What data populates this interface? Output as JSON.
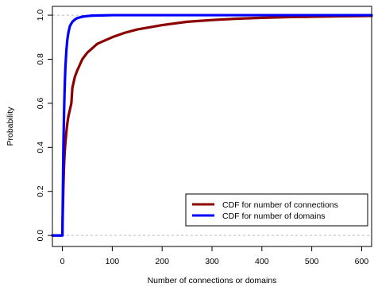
{
  "chart_data": {
    "type": "line",
    "title": "",
    "xlabel": "Number of connections or domains",
    "ylabel": "Probability",
    "xlim": [
      -20,
      620
    ],
    "ylim": [
      -0.05,
      1.04
    ],
    "x_ticks": [
      0,
      100,
      200,
      300,
      400,
      500,
      600
    ],
    "x_tick_labels": [
      "0",
      "100",
      "200",
      "300",
      "400",
      "500",
      "600"
    ],
    "y_ticks": [
      0.0,
      0.2,
      0.4,
      0.6,
      0.8,
      1.0
    ],
    "y_tick_labels": [
      "0.0",
      "0.2",
      "0.4",
      "0.6",
      "0.8",
      "1.0"
    ],
    "reference_lines_y": [
      0.0,
      1.0
    ],
    "grid": false,
    "legend_position": "bottom-right",
    "series": [
      {
        "name": "CDF for number of connections",
        "color": "#8b0000",
        "x": [
          -20,
          0,
          1,
          2,
          3,
          4,
          5,
          6,
          8,
          10,
          12,
          15,
          18,
          20,
          25,
          30,
          40,
          50,
          60,
          70,
          80,
          100,
          125,
          150,
          200,
          250,
          300,
          350,
          400,
          450,
          500,
          550,
          600,
          620
        ],
        "y": [
          0.0,
          0.0,
          0.12,
          0.22,
          0.3,
          0.35,
          0.39,
          0.42,
          0.47,
          0.51,
          0.54,
          0.57,
          0.6,
          0.67,
          0.72,
          0.75,
          0.8,
          0.83,
          0.85,
          0.87,
          0.88,
          0.9,
          0.92,
          0.935,
          0.955,
          0.97,
          0.978,
          0.984,
          0.988,
          0.991,
          0.993,
          0.995,
          0.996,
          0.997
        ]
      },
      {
        "name": "CDF for number of domains",
        "color": "#0000ff",
        "x": [
          -20,
          0,
          1,
          2,
          3,
          4,
          5,
          6,
          8,
          10,
          12,
          15,
          20,
          25,
          30,
          40,
          50,
          60,
          80,
          100,
          150,
          200,
          300,
          400,
          500,
          600,
          620
        ],
        "y": [
          0.0,
          0.0,
          0.2,
          0.4,
          0.52,
          0.62,
          0.7,
          0.76,
          0.84,
          0.89,
          0.92,
          0.95,
          0.97,
          0.98,
          0.987,
          0.993,
          0.996,
          0.998,
          0.999,
          1.0,
          1.0,
          1.0,
          1.0,
          1.0,
          1.0,
          1.0,
          1.0
        ]
      }
    ]
  }
}
